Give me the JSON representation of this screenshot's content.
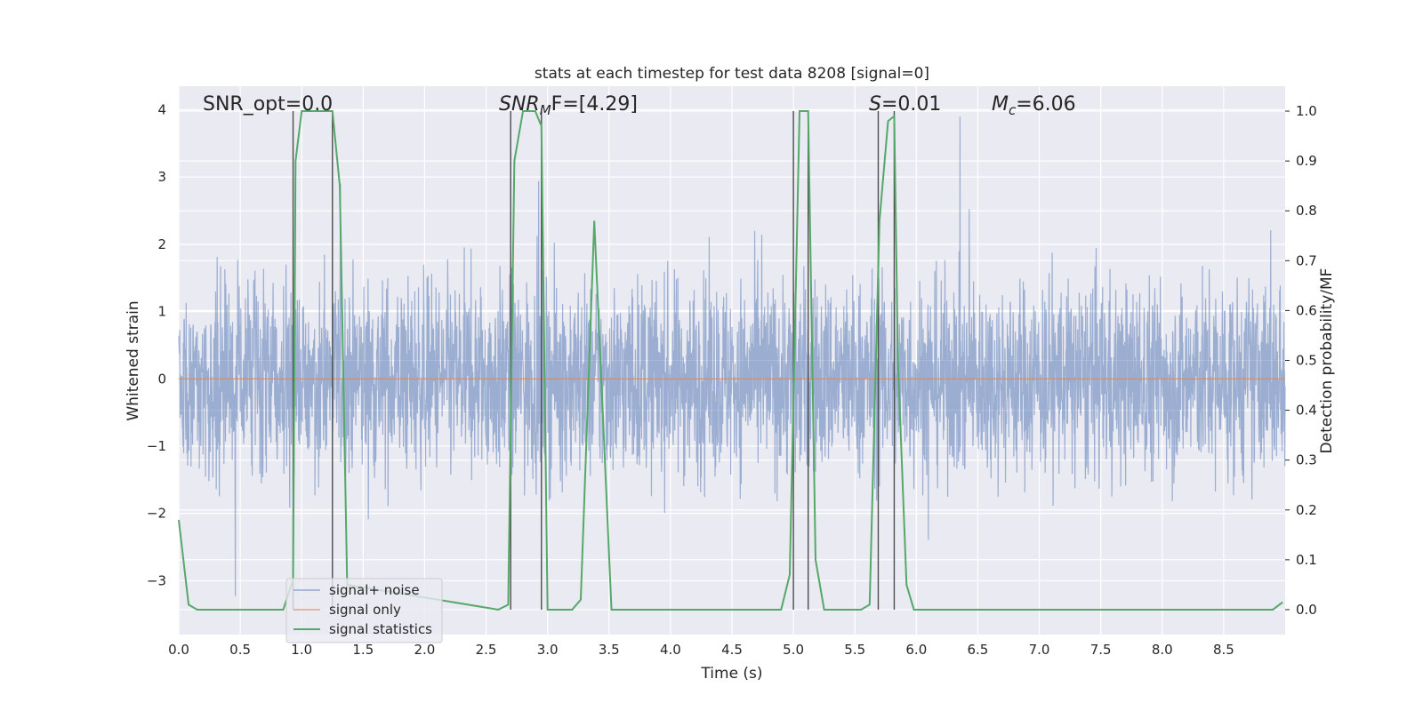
{
  "chart_data": {
    "type": "line",
    "title": "stats at each timestep for test data 8208 [signal=0]",
    "xlabel": "Time (s)",
    "ylabel": "Whitened strain",
    "ylabel_right": "Detection probability/MF",
    "xlim": [
      0,
      9.0
    ],
    "ylim": [
      -3.8,
      4.35
    ],
    "ylim_right": [
      -0.05,
      1.05
    ],
    "x_ticks": [
      "0.0",
      "0.5",
      "1.0",
      "1.5",
      "2.0",
      "2.5",
      "3.0",
      "3.5",
      "4.0",
      "4.5",
      "5.0",
      "5.5",
      "6.0",
      "6.5",
      "7.0",
      "7.5",
      "8.0",
      "8.5"
    ],
    "y_ticks": [
      "4",
      "3",
      "2",
      "1",
      "0",
      "−1",
      "−2",
      "−3"
    ],
    "y_ticks_right": [
      "1.0",
      "0.9",
      "0.8",
      "0.7",
      "0.6",
      "0.5",
      "0.4",
      "0.3",
      "0.2",
      "0.1",
      "0.0"
    ],
    "grid": true,
    "annotations": {
      "snr_opt": "SNR_opt=0.0",
      "snr_mf_main": "SNR",
      "snr_mf_sub": "M",
      "snr_mf_rest": "F=[4.29]",
      "s_main": "S",
      "s_rest": "=0.01",
      "mc_main": "M",
      "mc_sub": "c",
      "mc_rest": "=6.06"
    },
    "legend": {
      "position": "lower-left",
      "entries": [
        "signal+ noise",
        "signal only",
        "signal statistics"
      ]
    },
    "series": [
      {
        "name": "signal+ noise",
        "color": "#4c72b0",
        "description_values": {
          "envelope_typical": [
            -1.8,
            2.0
          ],
          "max": 4.0,
          "min": -3.6
        }
      },
      {
        "name": "signal only",
        "color": "#dd8452",
        "x": [
          0.0,
          9.0
        ],
        "y": [
          0.0,
          0.0
        ]
      },
      {
        "name": "signal statistics",
        "color": "#55a868",
        "x": [
          0.0,
          0.08,
          0.15,
          0.85,
          0.93,
          0.95,
          1.0,
          1.1,
          1.25,
          1.31,
          1.37,
          2.6,
          2.68,
          2.73,
          2.8,
          2.9,
          2.95,
          3.0,
          3.08,
          3.2,
          3.27,
          3.38,
          3.52,
          4.9,
          4.97,
          5.05,
          5.12,
          5.18,
          5.25,
          5.55,
          5.62,
          5.7,
          5.77,
          5.82,
          5.85,
          5.92,
          5.98,
          8.9,
          8.98
        ],
        "y": [
          0.18,
          0.01,
          0.0,
          0.0,
          0.06,
          0.9,
          1.0,
          1.0,
          1.0,
          0.85,
          0.05,
          0.0,
          0.01,
          0.9,
          1.0,
          1.0,
          0.97,
          0.0,
          0.0,
          0.0,
          0.02,
          0.78,
          0.0,
          0.0,
          0.07,
          1.0,
          1.0,
          0.1,
          0.0,
          0.0,
          0.01,
          0.78,
          0.98,
          0.99,
          0.5,
          0.05,
          0.0,
          0.0,
          0.015
        ]
      }
    ],
    "vertical_markers_x": [
      0.93,
      1.25,
      2.7,
      2.95,
      5.0,
      5.12,
      5.69,
      5.82
    ]
  }
}
